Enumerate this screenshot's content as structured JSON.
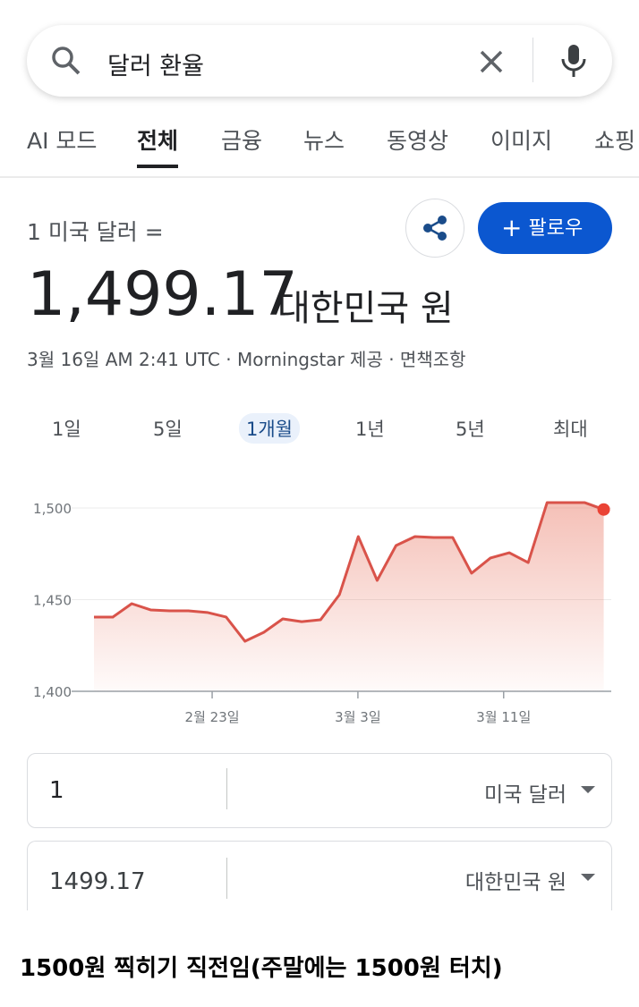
{
  "search": {
    "query": "달러 환율"
  },
  "tabs": [
    "AI 모드",
    "전체",
    "금융",
    "뉴스",
    "동영상",
    "이미지",
    "쇼핑"
  ],
  "rate": {
    "base": "1 미국 달러 =",
    "value": "1,499.17",
    "unit": "대한민국 원",
    "meta": "3월 16일 AM 2:41 UTC · Morningstar 제공",
    "disclaimer": "면책조항",
    "follow": "팔로우"
  },
  "ranges": [
    "1일",
    "5일",
    "1개월",
    "1년",
    "5년",
    "최대"
  ],
  "chart_data": {
    "type": "line",
    "color": "#d9534a",
    "x": [
      0,
      1,
      2,
      3,
      4,
      5,
      6,
      7,
      8,
      9,
      10,
      11,
      12,
      13,
      14,
      15,
      16,
      17,
      18,
      19,
      20,
      21,
      22,
      23,
      24,
      25,
      26,
      27
    ],
    "values": [
      1440.5,
      1440.5,
      1447.8,
      1444.4,
      1443.9,
      1443.9,
      1443,
      1440.5,
      1427.3,
      1432.2,
      1439.5,
      1438,
      1439,
      1452.7,
      1484.4,
      1460.5,
      1479.5,
      1484.4,
      1483.9,
      1483.9,
      1464.4,
      1472.7,
      1475.6,
      1470.2,
      1502.9,
      1502.9,
      1502.9,
      1499.17
    ],
    "xlim": [
      0,
      27.4
    ],
    "xticks": [
      {
        "value": 6.26,
        "label": "2월 23일"
      },
      {
        "value": 13.98,
        "label": "3월 3일"
      },
      {
        "value": 21.7,
        "label": "3월 11일"
      }
    ],
    "ylim": [
      1400,
      1510
    ],
    "yticks": [
      {
        "value": 1400,
        "label": "1,400"
      },
      {
        "value": 1450,
        "label": "1,450"
      },
      {
        "value": 1500,
        "label": "1,500"
      }
    ],
    "grid": true
  },
  "converter": {
    "from_amount": "1",
    "from_currency": "미국 달러",
    "to_amount": "1499.17",
    "to_currency": "대한민국 원"
  },
  "caption": "1500원 찍히기 직전임(주말에는 1500원 터치)"
}
